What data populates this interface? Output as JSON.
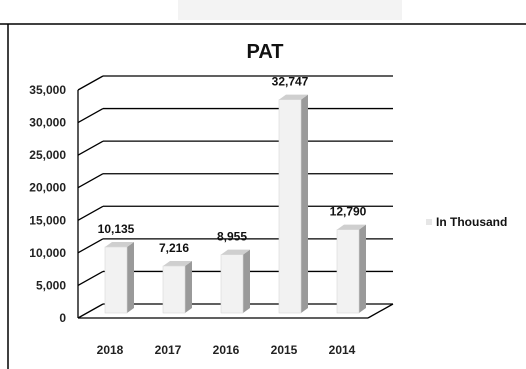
{
  "chart_data": {
    "type": "bar",
    "title": "PAT",
    "categories": [
      "2018",
      "2017",
      "2016",
      "2015",
      "2014"
    ],
    "series": [
      {
        "name": "In Thousand",
        "values": [
          10135,
          7216,
          8955,
          32747,
          12790
        ]
      }
    ],
    "data_labels": [
      "10,135",
      "7,216",
      "8,955",
      "32,747",
      "12,790"
    ],
    "y_ticks": [
      "0",
      "5,000",
      "10,000",
      "15,000",
      "20,000",
      "25,000",
      "30,000",
      "35,000"
    ],
    "ylim": [
      0,
      35000
    ],
    "grid": true,
    "legend_position": "right",
    "style": "3d",
    "colors": {
      "bar_front": "#f2f2f2",
      "bar_side": "#9a9a9a",
      "bar_top": "#cfcfcf",
      "grid": "#000000",
      "legend_marker": "#e6e6e6"
    }
  }
}
